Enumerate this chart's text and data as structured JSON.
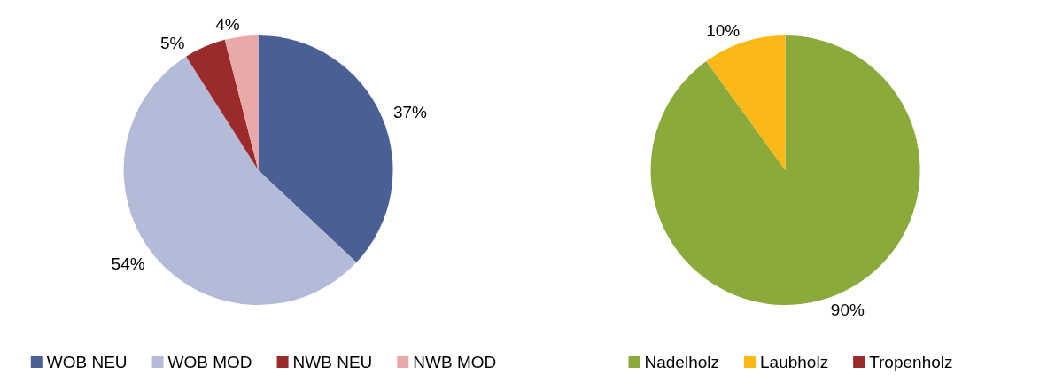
{
  "chart_data": [
    {
      "type": "pie",
      "categories": [
        "WOB NEU",
        "WOB MOD",
        "NWB NEU",
        "NWB MOD"
      ],
      "values": [
        37,
        54,
        5,
        4
      ],
      "colors": [
        "#4a5f94",
        "#b3bbd9",
        "#9b2a2a",
        "#e8a9a8"
      ],
      "value_labels": [
        "37%",
        "54%",
        "5%",
        "4%"
      ],
      "legend": "bottom"
    },
    {
      "type": "pie",
      "categories": [
        "Nadelholz",
        "Laubholz",
        "Tropenholz"
      ],
      "values": [
        90,
        10,
        0
      ],
      "colors": [
        "#8aab3c",
        "#fbb917",
        "#9b2a2a"
      ],
      "value_labels": [
        "90%",
        "10%",
        null
      ],
      "legend": "bottom"
    }
  ]
}
